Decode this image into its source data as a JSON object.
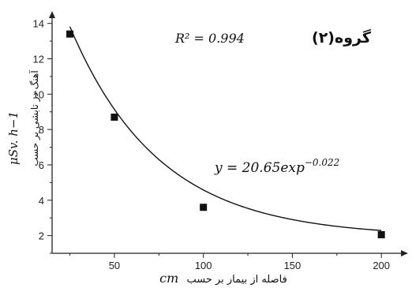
{
  "chart_data": {
    "type": "scatter",
    "title": "گروه(۲)",
    "xlabel": "فاصله از بیمار بر حسب",
    "xlabel_unit": "cm",
    "ylabel": "آهنگ دز تابشی بر حسب",
    "ylabel_unit": "μSv. h−1",
    "xlim": [
      15,
      215
    ],
    "ylim": [
      1.0,
      14.7
    ],
    "x_ticks": [
      50,
      100,
      150,
      200
    ],
    "y_ticks": [
      2,
      4,
      6,
      8,
      10,
      12,
      14
    ],
    "grid": false,
    "series": [
      {
        "x": [
          25,
          50,
          100,
          200
        ],
        "y": [
          13.4,
          8.7,
          3.6,
          2.05
        ],
        "marker": "square"
      }
    ],
    "fit_curve": {
      "equation_text": "y = 20.65exp",
      "exponent_text": "−0.022",
      "r2_text": "R² = 0.994",
      "model": {
        "type": "exp_decay",
        "asymptote": 1.93,
        "amplitude": 19.6,
        "rate": 0.02
      }
    },
    "colors": {
      "marker": "#111111",
      "curve": "#111111",
      "axis": "#222222"
    }
  }
}
